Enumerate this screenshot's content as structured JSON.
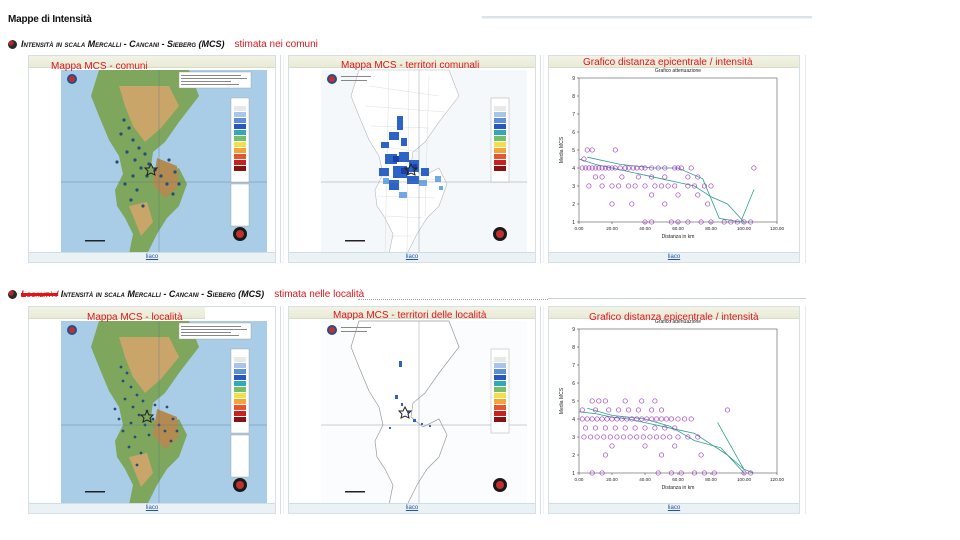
{
  "page_title": "Mappe di Intensità",
  "sections": [
    {
      "title": "Intensità in scala Mercalli - Cancani - Sieberg (MCS)",
      "title_prefix_struck": "",
      "subtitle": "stimata nei comuni",
      "panels": [
        {
          "caption": "Mappa MCS - comuni",
          "link": "liaco"
        },
        {
          "caption": "Mappa MCS - territori comunali",
          "link": "liaco"
        },
        {
          "caption": "Grafico distanza epicentrale / intensità",
          "link": "liaco"
        }
      ]
    },
    {
      "title": "Intensità in scala Mercalli - Cancani - Sieberg (MCS)",
      "title_prefix_struck": "Località /",
      "subtitle": "stimata nelle località",
      "panels": [
        {
          "caption": "Mappa MCS - località",
          "link": "liaco"
        },
        {
          "caption": "Mappa MCS - territori delle località",
          "link": "liaco"
        },
        {
          "caption": "Grafico distanza epicentrale / intensità",
          "link": "liaco"
        }
      ]
    }
  ],
  "chart_common": {
    "title": "Grafico attenuazione",
    "xlabel": "Distanza in km",
    "ylabel": "Media MCS",
    "xticks": [
      "0.00",
      "20.00",
      "40.00",
      "60.00",
      "80.00",
      "100.00",
      "120.00"
    ],
    "yticks": [
      "1",
      "2",
      "3",
      "4",
      "5",
      "6",
      "7",
      "8",
      "9"
    ],
    "colors": {
      "points": "#a040c0",
      "lines": "#2f9e8f",
      "axis": "#222222"
    }
  },
  "chart_data": [
    {
      "type": "scatter",
      "title": "Grafico attenuazione",
      "xlabel": "Distanza in km",
      "ylabel": "Media MCS",
      "xlim": [
        0,
        120
      ],
      "ylim": [
        1,
        9
      ],
      "series": [
        {
          "values": [
            [
              5,
              5
            ],
            [
              8,
              5
            ],
            [
              22,
              5
            ],
            [
              3,
              4.5
            ],
            [
              2,
              4
            ],
            [
              4,
              4
            ],
            [
              6,
              4
            ],
            [
              8,
              4
            ],
            [
              10,
              4
            ],
            [
              12,
              4
            ],
            [
              14,
              4
            ],
            [
              16,
              4
            ],
            [
              18,
              4
            ],
            [
              20,
              4
            ],
            [
              22,
              4
            ],
            [
              25,
              4
            ],
            [
              28,
              4
            ],
            [
              30,
              4
            ],
            [
              33,
              4
            ],
            [
              35,
              4
            ],
            [
              38,
              4
            ],
            [
              40,
              4
            ],
            [
              44,
              4
            ],
            [
              48,
              4
            ],
            [
              52,
              4
            ],
            [
              58,
              4
            ],
            [
              60,
              4
            ],
            [
              62,
              4
            ],
            [
              68,
              4
            ],
            [
              106,
              4
            ],
            [
              10,
              3.5
            ],
            [
              14,
              3.5
            ],
            [
              26,
              3.5
            ],
            [
              36,
              3.5
            ],
            [
              44,
              3.5
            ],
            [
              52,
              3.5
            ],
            [
              66,
              3.5
            ],
            [
              72,
              3.5
            ],
            [
              6,
              3
            ],
            [
              14,
              3
            ],
            [
              20,
              3
            ],
            [
              24,
              3
            ],
            [
              30,
              3
            ],
            [
              34,
              3
            ],
            [
              40,
              3
            ],
            [
              46,
              3
            ],
            [
              50,
              3
            ],
            [
              54,
              3
            ],
            [
              58,
              3
            ],
            [
              66,
              3
            ],
            [
              70,
              3
            ],
            [
              76,
              3
            ],
            [
              80,
              3
            ],
            [
              44,
              2.5
            ],
            [
              60,
              2.5
            ],
            [
              72,
              2.5
            ],
            [
              20,
              2
            ],
            [
              32,
              2
            ],
            [
              52,
              2
            ],
            [
              78,
              2
            ],
            [
              40,
              1
            ],
            [
              44,
              1
            ],
            [
              56,
              1
            ],
            [
              60,
              1
            ],
            [
              66,
              1
            ],
            [
              74,
              1
            ],
            [
              80,
              1
            ],
            [
              88,
              1
            ],
            [
              92,
              1
            ],
            [
              96,
              1
            ],
            [
              100,
              1
            ],
            [
              104,
              1
            ]
          ]
        }
      ],
      "lines": [
        {
          "values": [
            [
              0,
              4.5
            ],
            [
              10,
              4.2
            ],
            [
              20,
              4.0
            ],
            [
              30,
              3.8
            ],
            [
              40,
              3.6
            ],
            [
              50,
              3.4
            ],
            [
              60,
              3.2
            ],
            [
              70,
              3.0
            ],
            [
              80,
              2.4
            ],
            [
              90,
              2.0
            ],
            [
              100,
              1.0
            ],
            [
              105,
              1.0
            ]
          ]
        },
        {
          "values": [
            [
              5,
              4.6
            ],
            [
              25,
              4.2
            ],
            [
              45,
              4.0
            ],
            [
              60,
              4.0
            ],
            [
              75,
              3.4
            ],
            [
              85,
              1.2
            ],
            [
              98,
              1.0
            ]
          ]
        },
        {
          "values": [
            [
              98,
              1.0
            ],
            [
              106,
              2.8
            ]
          ]
        }
      ]
    },
    {
      "type": "scatter",
      "title": "Grafico attenuazione",
      "xlabel": "Distanza in km",
      "ylabel": "Media MCS",
      "xlim": [
        0,
        120
      ],
      "ylim": [
        1,
        9
      ],
      "series": [
        {
          "values": [
            [
              8,
              5
            ],
            [
              12,
              5
            ],
            [
              16,
              5
            ],
            [
              28,
              5
            ],
            [
              38,
              5
            ],
            [
              46,
              5
            ],
            [
              2,
              4.5
            ],
            [
              10,
              4.5
            ],
            [
              18,
              4.5
            ],
            [
              24,
              4.5
            ],
            [
              30,
              4.5
            ],
            [
              36,
              4.5
            ],
            [
              44,
              4.5
            ],
            [
              50,
              4.5
            ],
            [
              90,
              4.5
            ],
            [
              2,
              4
            ],
            [
              5,
              4
            ],
            [
              8,
              4
            ],
            [
              11,
              4
            ],
            [
              14,
              4
            ],
            [
              17,
              4
            ],
            [
              20,
              4
            ],
            [
              23,
              4
            ],
            [
              26,
              4
            ],
            [
              29,
              4
            ],
            [
              32,
              4
            ],
            [
              35,
              4
            ],
            [
              38,
              4
            ],
            [
              41,
              4
            ],
            [
              44,
              4
            ],
            [
              47,
              4
            ],
            [
              50,
              4
            ],
            [
              53,
              4
            ],
            [
              56,
              4
            ],
            [
              60,
              4
            ],
            [
              64,
              4
            ],
            [
              68,
              4
            ],
            [
              4,
              3.5
            ],
            [
              10,
              3.5
            ],
            [
              16,
              3.5
            ],
            [
              22,
              3.5
            ],
            [
              28,
              3.5
            ],
            [
              34,
              3.5
            ],
            [
              40,
              3.5
            ],
            [
              46,
              3.5
            ],
            [
              52,
              3.5
            ],
            [
              58,
              3.5
            ],
            [
              3,
              3
            ],
            [
              7,
              3
            ],
            [
              11,
              3
            ],
            [
              15,
              3
            ],
            [
              19,
              3
            ],
            [
              23,
              3
            ],
            [
              27,
              3
            ],
            [
              31,
              3
            ],
            [
              35,
              3
            ],
            [
              39,
              3
            ],
            [
              43,
              3
            ],
            [
              47,
              3
            ],
            [
              51,
              3
            ],
            [
              55,
              3
            ],
            [
              60,
              3
            ],
            [
              66,
              3
            ],
            [
              72,
              3
            ],
            [
              20,
              2.5
            ],
            [
              40,
              2.5
            ],
            [
              58,
              2.5
            ],
            [
              16,
              2
            ],
            [
              50,
              2
            ],
            [
              74,
              2
            ],
            [
              8,
              1
            ],
            [
              14,
              1
            ],
            [
              48,
              1
            ],
            [
              56,
              1
            ],
            [
              62,
              1
            ],
            [
              70,
              1
            ],
            [
              76,
              1
            ],
            [
              82,
              1
            ],
            [
              100,
              1
            ],
            [
              104,
              1
            ]
          ]
        }
      ],
      "lines": [
        {
          "values": [
            [
              0,
              4.4
            ],
            [
              10,
              4.3
            ],
            [
              20,
              4.1
            ],
            [
              30,
              4.0
            ],
            [
              40,
              3.8
            ],
            [
              50,
              3.6
            ],
            [
              60,
              3.4
            ],
            [
              70,
              3.2
            ],
            [
              80,
              2.6
            ],
            [
              90,
              2.0
            ],
            [
              100,
              1.2
            ],
            [
              106,
              1.0
            ]
          ]
        },
        {
          "values": [
            [
              5,
              4.6
            ],
            [
              20,
              4.2
            ],
            [
              40,
              4.0
            ],
            [
              55,
              3.6
            ],
            [
              70,
              2.8
            ],
            [
              86,
              2.4
            ],
            [
              100,
              1.0
            ]
          ]
        },
        {
          "values": [
            [
              84,
              3.8
            ],
            [
              100,
              1.2
            ]
          ]
        }
      ]
    }
  ]
}
